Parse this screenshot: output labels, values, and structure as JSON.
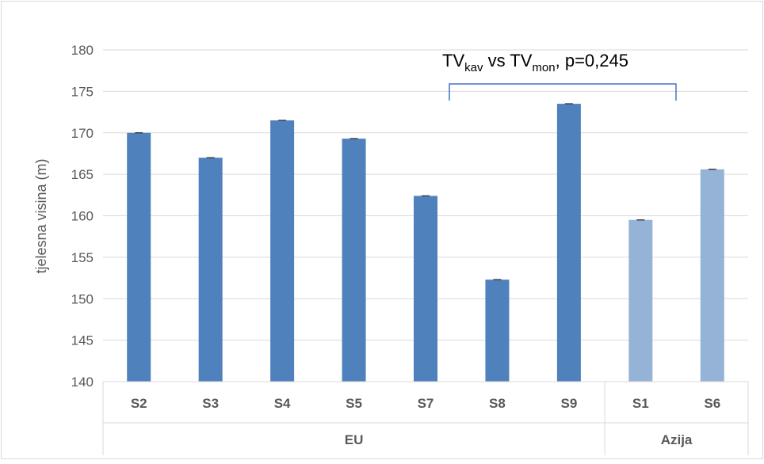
{
  "chart_data": {
    "type": "bar",
    "ylabel": "tjelesna visina (m)",
    "ylim": [
      140,
      180
    ],
    "ytick_step": 5,
    "yticks": [
      "140",
      "145",
      "150",
      "155",
      "160",
      "165",
      "170",
      "175",
      "180"
    ],
    "grid": true,
    "categories": [
      "S2",
      "S3",
      "S4",
      "S5",
      "S7",
      "S8",
      "S9",
      "S1",
      "S6"
    ],
    "groups": [
      {
        "name": "EU",
        "categories": [
          "S2",
          "S3",
          "S4",
          "S5",
          "S7",
          "S8",
          "S9"
        ]
      },
      {
        "name": "Azija",
        "categories": [
          "S1",
          "S6"
        ]
      }
    ],
    "values": [
      170.0,
      167.0,
      171.5,
      169.3,
      162.4,
      152.3,
      173.5,
      159.5,
      165.6
    ],
    "bar_colors": [
      "#4f81bd",
      "#4f81bd",
      "#4f81bd",
      "#4f81bd",
      "#4f81bd",
      "#4f81bd",
      "#4f81bd",
      "#95b3d7",
      "#95b3d7"
    ],
    "annotation": {
      "tv1": "TV",
      "sub1": "kav",
      "mid": " vs TV",
      "sub2": "mon",
      "tail": ", p=0,245"
    }
  }
}
